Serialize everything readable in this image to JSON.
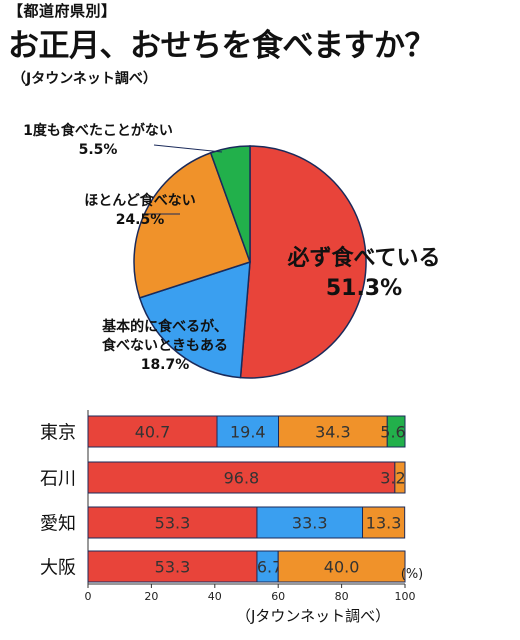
{
  "header": {
    "tag": "【都道府県別】",
    "title": "お正月、おせちを食べますか？",
    "source": "（Jタウンネット調べ）"
  },
  "chart_data": [
    {
      "type": "pie",
      "slices": [
        {
          "label": "必ず食べている",
          "value": 51.3,
          "value_text": "51.3%",
          "color": "#e8443a"
        },
        {
          "label": "基本的に食べるが、食べないときもある",
          "label_lines": [
            "基本的に食べるが、",
            "食べないときもある"
          ],
          "value": 18.7,
          "value_text": "18.7%",
          "color": "#3a9ff0"
        },
        {
          "label": "ほとんど食べない",
          "value": 24.5,
          "value_text": "24.5%",
          "color": "#f0922a"
        },
        {
          "label": "1度も食べたことがない",
          "value": 5.5,
          "value_text": "5.5%",
          "color": "#22b04b"
        }
      ]
    },
    {
      "type": "bar",
      "orientation": "horizontal",
      "stacked": true,
      "categories": [
        "東京",
        "石川",
        "愛知",
        "大阪"
      ],
      "series": [
        {
          "key": "always",
          "color": "#e8443a",
          "values": [
            40.7,
            96.8,
            53.3,
            53.3
          ],
          "labels": [
            "40.7",
            "96.8",
            "53.3",
            "53.3"
          ]
        },
        {
          "key": "sometimes",
          "color": "#3a9ff0",
          "values": [
            19.4,
            0,
            33.3,
            6.7
          ],
          "labels": [
            "19.4",
            "",
            "33.3",
            "6.7"
          ]
        },
        {
          "key": "rarely",
          "color": "#f0922a",
          "values": [
            34.3,
            3.2,
            13.3,
            40.0
          ],
          "labels": [
            "34.3",
            "3.2",
            "13.3",
            "40.0"
          ]
        },
        {
          "key": "never",
          "color": "#22b04b",
          "values": [
            5.6,
            0,
            0,
            0
          ],
          "labels": [
            "5.6",
            "",
            "",
            ""
          ]
        }
      ],
      "xlim": [
        0,
        100
      ],
      "xticks": [
        "0",
        "20",
        "40",
        "60",
        "80",
        "100"
      ],
      "unit": "(%)",
      "source": "（Jタウンネット調べ）"
    }
  ]
}
